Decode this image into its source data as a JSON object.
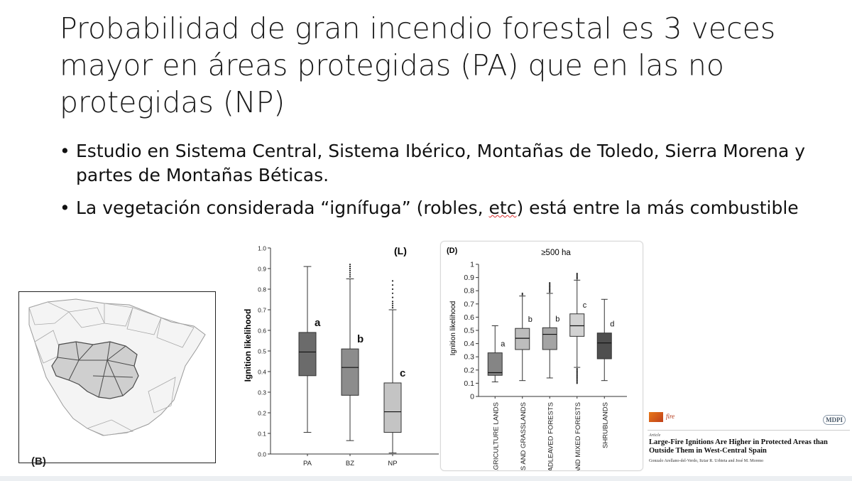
{
  "slide": {
    "title": "Probabilidad de gran incendio forestal es 3 veces mayor en áreas protegidas (PA) que en las no protegidas (NP)",
    "bullets": [
      {
        "pre": "Estudio en Sistema Central, Sistema Ibérico, Montañas de Toledo, Sierra Morena y partes de Montañas Béticas.",
        "mid": "",
        "post": ""
      },
      {
        "pre": "La vegetación considerada “ignífuga” (robles, ",
        "mid": "etc",
        "post": ") está entre la más combustible"
      }
    ],
    "bullet_glyph": "•"
  },
  "map": {
    "label": "(B)"
  },
  "chart_data": [
    {
      "type": "box",
      "panel_label": "(L)",
      "ylabel": "Ignition likelihood",
      "ylim": [
        0,
        1
      ],
      "yticks": [
        "0.0",
        "0.1",
        "0.2",
        "0.3",
        "0.4",
        "0.5",
        "0.6",
        "0.7",
        "0.8",
        "0.9",
        "1.0"
      ],
      "categories": [
        "PA",
        "BZ",
        "NP"
      ],
      "boxes": [
        {
          "min": 0.105,
          "q1": 0.38,
          "median": 0.495,
          "q3": 0.59,
          "max": 0.91,
          "letter": "a",
          "color": "#6b6b6b",
          "outliers": []
        },
        {
          "min": 0.065,
          "q1": 0.285,
          "median": 0.42,
          "q3": 0.51,
          "max": 0.85,
          "letter": "b",
          "color": "#8c8c8c",
          "outliers": [
            0.86,
            0.87,
            0.88,
            0.89,
            0.9,
            0.91,
            0.92
          ]
        },
        {
          "min": 0.005,
          "q1": 0.105,
          "median": 0.205,
          "q3": 0.345,
          "max": 0.7,
          "letter": "c",
          "color": "#c4c4c4",
          "outliers": [
            0.71,
            0.72,
            0.73,
            0.74,
            0.76,
            0.78,
            0.8,
            0.82,
            0.84
          ]
        }
      ]
    },
    {
      "type": "box",
      "panel_label": "(D)",
      "subtitle": "≥500 ha",
      "ylabel": "Ignition likelihood",
      "ylim": [
        0,
        1
      ],
      "yticks": [
        "0",
        "0.1",
        "0.2",
        "0.3",
        "0.4",
        "0.5",
        "0.6",
        "0.7",
        "0.8",
        "0.9",
        "1"
      ],
      "categories": [
        "AGRICULTURE LANDS",
        "DEHESAS AND GRASSLANDS",
        "BROADLEAVED FORESTS",
        "PINE AND MIXED FORESTS",
        "SHRUBLANDS"
      ],
      "boxes": [
        {
          "min": 0.11,
          "q1": 0.16,
          "median": 0.18,
          "q3": 0.33,
          "max": 0.535,
          "letter": "a",
          "color": "#858585",
          "outliers": []
        },
        {
          "min": 0.12,
          "q1": 0.355,
          "median": 0.44,
          "q3": 0.515,
          "max": 0.76,
          "letter": "b",
          "color": "#bdbdbd",
          "outliers": [
            0.77,
            0.78
          ]
        },
        {
          "min": 0.14,
          "q1": 0.355,
          "median": 0.47,
          "q3": 0.52,
          "max": 0.78,
          "letter": "b",
          "color": "#a4a4a4",
          "outliers": [
            0.79,
            0.8,
            0.81,
            0.82,
            0.83,
            0.84,
            0.85,
            0.86
          ]
        },
        {
          "min": 0.22,
          "q1": 0.455,
          "median": 0.535,
          "q3": 0.625,
          "max": 0.88,
          "letter": "c",
          "color": "#d2d2d2",
          "outliers": [
            0.1,
            0.11,
            0.12,
            0.13,
            0.14,
            0.15,
            0.16,
            0.17,
            0.18,
            0.19,
            0.2,
            0.21,
            0.89,
            0.9,
            0.91,
            0.92,
            0.93
          ]
        },
        {
          "min": 0.12,
          "q1": 0.285,
          "median": 0.405,
          "q3": 0.48,
          "max": 0.735,
          "letter": "d",
          "color": "#4f4f4f",
          "outliers": []
        }
      ]
    }
  ],
  "paper": {
    "journal": "fire",
    "publisher": "MDPI",
    "kind": "Article",
    "title": "Large-Fire Ignitions Are Higher in Protected Areas than Outside Them in West-Central Spain",
    "authors": "Gonzalo Arellano-del-Verdo, Itziar R. Urbieta and José M. Moreno"
  }
}
